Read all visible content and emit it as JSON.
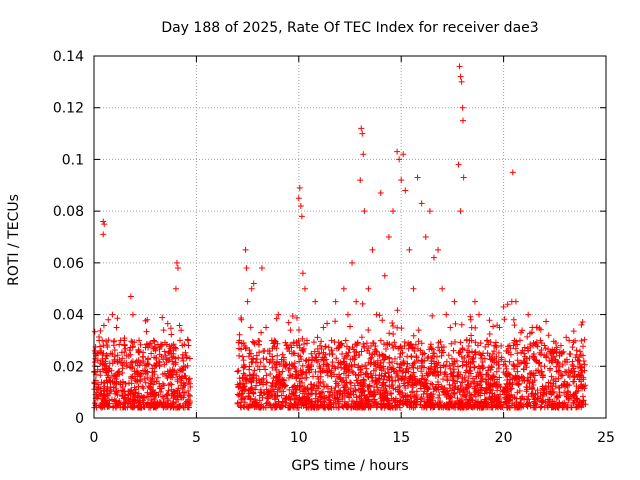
{
  "chart_data": {
    "type": "scatter",
    "title": "Day 188 of 2025, Rate Of TEC Index for receiver dae3",
    "xlabel": "GPS time / hours",
    "ylabel": "ROTI / TECUs",
    "xlim": [
      0,
      25
    ],
    "ylim": [
      0,
      0.14
    ],
    "xticks": [
      0,
      5,
      10,
      15,
      20,
      25
    ],
    "xtick_labels": [
      "0",
      "5",
      "10",
      "15",
      "20",
      "25"
    ],
    "yticks": [
      0,
      0.02,
      0.04,
      0.06,
      0.08,
      0.1,
      0.12,
      0.14
    ],
    "ytick_labels": [
      "0",
      "0.02",
      "0.04",
      "0.06",
      "0.08",
      "0.1",
      "0.12",
      "0.14"
    ],
    "grid": true,
    "marker": "+",
    "color": "#ff0000",
    "series": [
      {
        "name": "ROTI",
        "points": [
          [
            0.1,
            0.012
          ],
          [
            0.2,
            0.025
          ],
          [
            0.3,
            0.018
          ],
          [
            0.4,
            0.03
          ],
          [
            0.45,
            0.076
          ],
          [
            0.5,
            0.075
          ],
          [
            0.45,
            0.071
          ],
          [
            0.6,
            0.02
          ],
          [
            0.7,
            0.038
          ],
          [
            0.8,
            0.014
          ],
          [
            0.9,
            0.04
          ],
          [
            1.0,
            0.022
          ],
          [
            1.1,
            0.035
          ],
          [
            1.2,
            0.018
          ],
          [
            1.3,
            0.03
          ],
          [
            1.4,
            0.012
          ],
          [
            1.5,
            0.028
          ],
          [
            1.6,
            0.02
          ],
          [
            1.7,
            0.024
          ],
          [
            1.8,
            0.047
          ],
          [
            1.9,
            0.04
          ],
          [
            2.0,
            0.016
          ],
          [
            2.2,
            0.03
          ],
          [
            2.4,
            0.022
          ],
          [
            2.6,
            0.038
          ],
          [
            2.8,
            0.014
          ],
          [
            3.0,
            0.026
          ],
          [
            3.2,
            0.02
          ],
          [
            3.4,
            0.034
          ],
          [
            3.6,
            0.018
          ],
          [
            3.8,
            0.028
          ],
          [
            4.0,
            0.05
          ],
          [
            4.05,
            0.06
          ],
          [
            4.1,
            0.058
          ],
          [
            4.2,
            0.03
          ],
          [
            4.3,
            0.016
          ],
          [
            4.5,
            0.024
          ],
          [
            4.6,
            0.03
          ],
          [
            4.7,
            0.012
          ],
          [
            7.0,
            0.018
          ],
          [
            7.1,
            0.03
          ],
          [
            7.2,
            0.038
          ],
          [
            7.3,
            0.012
          ],
          [
            7.4,
            0.065
          ],
          [
            7.45,
            0.058
          ],
          [
            7.5,
            0.045
          ],
          [
            7.6,
            0.025
          ],
          [
            7.7,
            0.05
          ],
          [
            7.8,
            0.052
          ],
          [
            8.0,
            0.02
          ],
          [
            8.2,
            0.058
          ],
          [
            8.4,
            0.035
          ],
          [
            8.6,
            0.022
          ],
          [
            8.8,
            0.03
          ],
          [
            9.0,
            0.04
          ],
          [
            9.2,
            0.018
          ],
          [
            9.4,
            0.028
          ],
          [
            9.6,
            0.034
          ],
          [
            9.8,
            0.025
          ],
          [
            10.0,
            0.085
          ],
          [
            10.05,
            0.089
          ],
          [
            10.1,
            0.082
          ],
          [
            10.15,
            0.078
          ],
          [
            10.2,
            0.056
          ],
          [
            10.3,
            0.05
          ],
          [
            10.4,
            0.03
          ],
          [
            10.6,
            0.02
          ],
          [
            10.8,
            0.045
          ],
          [
            11.0,
            0.025
          ],
          [
            11.2,
            0.035
          ],
          [
            11.4,
            0.018
          ],
          [
            11.6,
            0.03
          ],
          [
            11.8,
            0.045
          ],
          [
            12.0,
            0.028
          ],
          [
            12.2,
            0.05
          ],
          [
            12.4,
            0.04
          ],
          [
            12.6,
            0.06
          ],
          [
            12.8,
            0.045
          ],
          [
            13.0,
            0.092
          ],
          [
            13.05,
            0.112
          ],
          [
            13.1,
            0.11
          ],
          [
            13.15,
            0.102
          ],
          [
            13.2,
            0.08
          ],
          [
            13.4,
            0.05
          ],
          [
            13.6,
            0.065
          ],
          [
            13.8,
            0.04
          ],
          [
            14.0,
            0.087
          ],
          [
            14.2,
            0.055
          ],
          [
            14.4,
            0.07
          ],
          [
            14.6,
            0.08
          ],
          [
            14.8,
            0.103
          ],
          [
            14.9,
            0.1
          ],
          [
            15.0,
            0.092
          ],
          [
            15.1,
            0.102
          ],
          [
            15.2,
            0.088
          ],
          [
            15.4,
            0.065
          ],
          [
            15.6,
            0.05
          ],
          [
            15.8,
            0.093
          ],
          [
            16.0,
            0.083
          ],
          [
            16.2,
            0.07
          ],
          [
            16.4,
            0.08
          ],
          [
            16.6,
            0.062
          ],
          [
            16.8,
            0.065
          ],
          [
            17.0,
            0.05
          ],
          [
            17.2,
            0.04
          ],
          [
            17.4,
            0.035
          ],
          [
            17.6,
            0.045
          ],
          [
            17.8,
            0.098
          ],
          [
            17.85,
            0.136
          ],
          [
            17.9,
            0.132
          ],
          [
            17.95,
            0.13
          ],
          [
            18.0,
            0.12
          ],
          [
            18.02,
            0.115
          ],
          [
            18.05,
            0.093
          ],
          [
            17.9,
            0.08
          ],
          [
            18.2,
            0.03
          ],
          [
            18.4,
            0.038
          ],
          [
            18.6,
            0.045
          ],
          [
            18.8,
            0.04
          ],
          [
            19.0,
            0.025
          ],
          [
            19.2,
            0.03
          ],
          [
            19.4,
            0.02
          ],
          [
            19.6,
            0.028
          ],
          [
            19.8,
            0.035
          ],
          [
            20.0,
            0.043
          ],
          [
            20.2,
            0.044
          ],
          [
            20.4,
            0.045
          ],
          [
            20.45,
            0.095
          ],
          [
            20.5,
            0.038
          ],
          [
            20.6,
            0.045
          ],
          [
            20.8,
            0.03
          ],
          [
            21.0,
            0.025
          ],
          [
            21.2,
            0.04
          ],
          [
            21.4,
            0.035
          ],
          [
            21.6,
            0.022
          ],
          [
            21.8,
            0.03
          ],
          [
            22.0,
            0.02
          ],
          [
            22.2,
            0.032
          ],
          [
            22.4,
            0.025
          ],
          [
            22.6,
            0.018
          ],
          [
            22.8,
            0.028
          ],
          [
            23.0,
            0.022
          ],
          [
            23.2,
            0.03
          ],
          [
            23.4,
            0.02
          ],
          [
            23.6,
            0.016
          ],
          [
            23.8,
            0.036
          ],
          [
            23.9,
            0.015
          ]
        ]
      }
    ],
    "dense_band": {
      "segments": [
        [
          0,
          4.7
        ],
        [
          7.0,
          24.0
        ]
      ],
      "typical_range": [
        0.004,
        0.03
      ],
      "count_approx": 3000,
      "seed": 188
    }
  }
}
